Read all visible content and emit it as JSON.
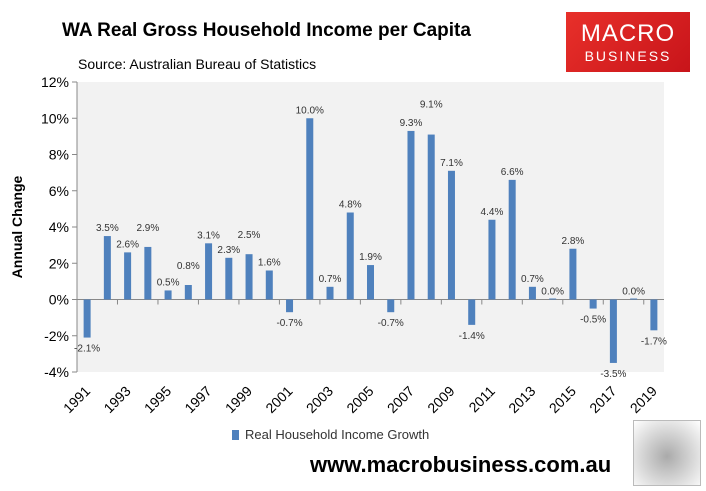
{
  "chart_data": {
    "type": "bar",
    "title": "WA Real Gross Household Income per Capita",
    "subtitle": "Source: Australian Bureau of Statistics",
    "xlabel": "",
    "ylabel": "Annual Change",
    "ylim": [
      -4,
      12
    ],
    "yticks": [
      "-4%",
      "-2%",
      "0%",
      "2%",
      "4%",
      "6%",
      "8%",
      "10%",
      "12%"
    ],
    "ytick_values": [
      -4,
      -2,
      0,
      2,
      4,
      6,
      8,
      10,
      12
    ],
    "categories": [
      1991,
      1992,
      1993,
      1994,
      1995,
      1996,
      1997,
      1998,
      1999,
      2000,
      2001,
      2002,
      2003,
      2004,
      2005,
      2006,
      2007,
      2008,
      2009,
      2010,
      2011,
      2012,
      2013,
      2014,
      2015,
      2016,
      2017,
      2018,
      2019
    ],
    "xtick_labels": [
      "1991",
      "1993",
      "1995",
      "1997",
      "1999",
      "2001",
      "2003",
      "2005",
      "2007",
      "2009",
      "2011",
      "2013",
      "2015",
      "2017",
      "2019"
    ],
    "series": [
      {
        "name": "Real Household Income Growth",
        "color": "#4f81bd",
        "values": [
          -2.1,
          3.5,
          2.6,
          2.9,
          0.5,
          0.8,
          3.1,
          2.3,
          2.5,
          1.6,
          -0.7,
          10.0,
          0.7,
          4.8,
          1.9,
          -0.7,
          9.3,
          9.1,
          7.1,
          -1.4,
          4.4,
          6.6,
          0.7,
          0.0,
          2.8,
          -0.5,
          -3.5,
          0.0,
          -1.7
        ],
        "labels": [
          "-2.1%",
          "3.5%",
          "2.6%",
          "2.9%",
          "0.5%",
          "0.8%",
          "3.1%",
          "2.3%",
          "2.5%",
          "1.6%",
          "-0.7%",
          "10.0%",
          "0.7%",
          "4.8%",
          "1.9%",
          "-0.7%",
          "9.3%",
          "9.1%",
          "7.1%",
          "-1.4%",
          "4.4%",
          "6.6%",
          "0.7%",
          "0.0%",
          "2.8%",
          "-0.5%",
          "-3.5%",
          "0.0%",
          "-1.7%"
        ]
      }
    ],
    "grid": false,
    "legend": "bottom"
  },
  "logo": {
    "line1": "MACRO",
    "line2": "BUSINESS"
  },
  "url": "www.macrobusiness.com.au"
}
